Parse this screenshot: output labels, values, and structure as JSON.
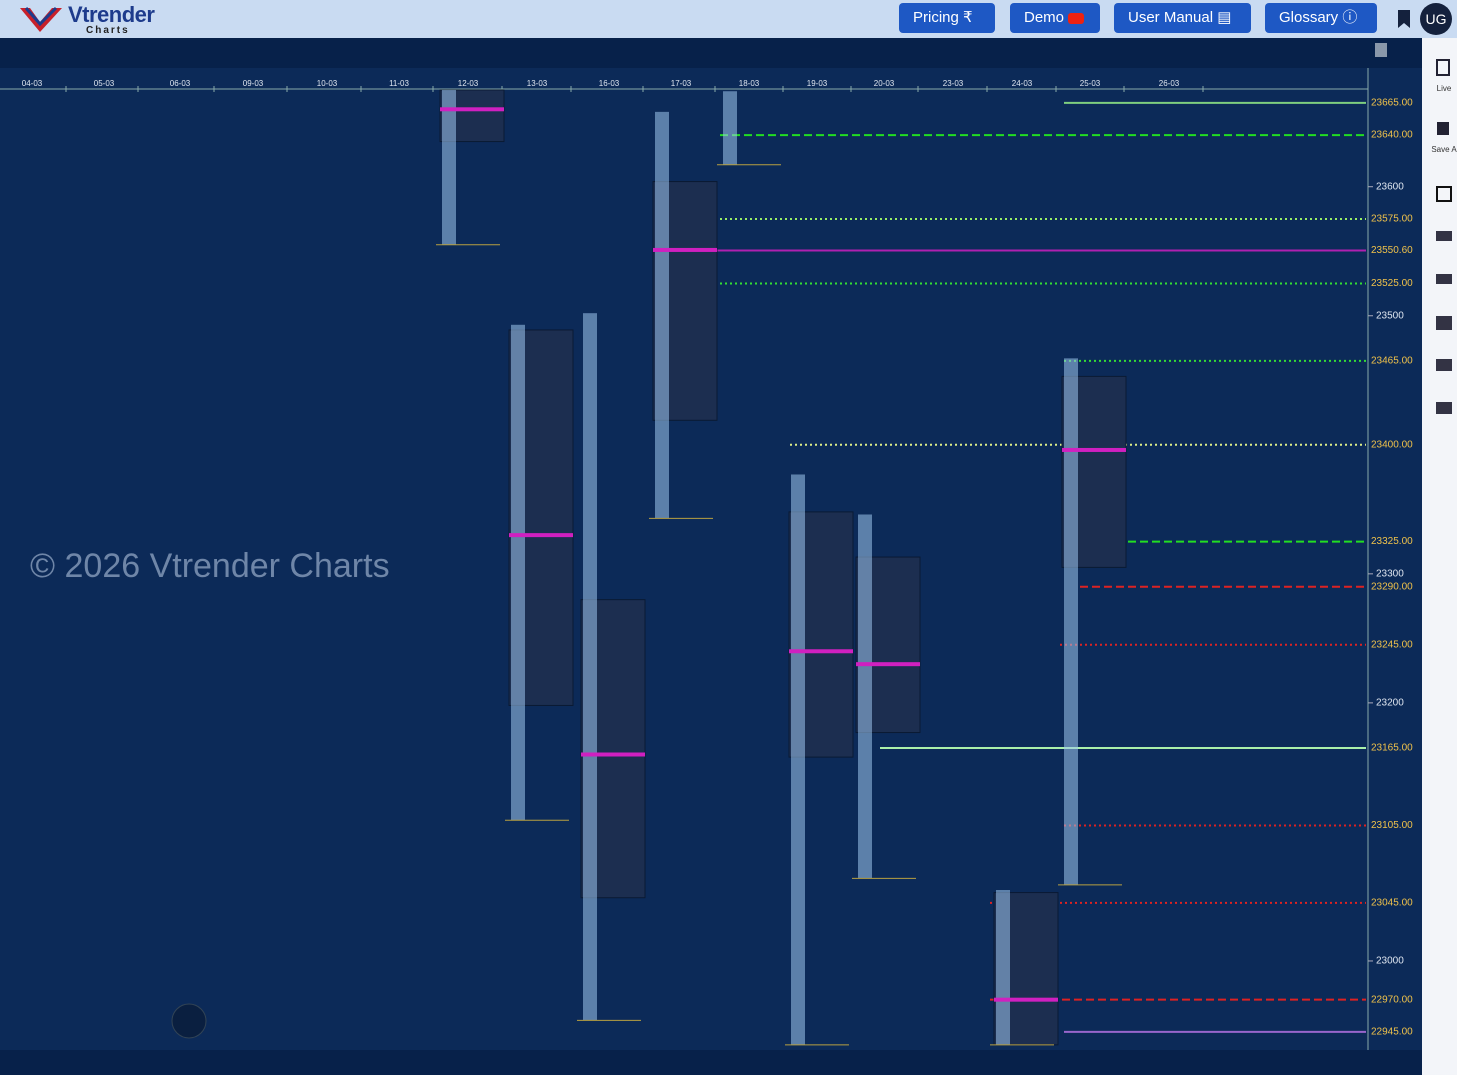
{
  "header": {
    "logo": "Vtrender",
    "logo_sub": "Charts",
    "buttons": [
      "Pricing",
      "Demo",
      "User Manual",
      "Glossary"
    ],
    "user": "UG"
  },
  "sidebar": {
    "live": "Live",
    "save": "Save A"
  },
  "watermark": "© 2026 Vtrender Charts",
  "dates": [
    "04-03",
    "05-03",
    "06-03",
    "09-03",
    "10-03",
    "11-03",
    "12-03",
    "13-03",
    "16-03",
    "17-03",
    "18-03",
    "19-03",
    "20-03",
    "23-03",
    "24-03",
    "25-03",
    "26-03"
  ],
  "price_axis": {
    "ylim": [
      22931,
      23692
    ],
    "yticks": [
      23600,
      23500,
      23300,
      23200,
      23000
    ]
  },
  "levels": [
    {
      "value": 23665,
      "label": "23665.00",
      "color": "#7fcf7f",
      "style": "solid"
    },
    {
      "value": 23640,
      "label": "23640.00",
      "color": "#22dd22",
      "style": "dashed"
    },
    {
      "value": 23575,
      "label": "23575.00",
      "color": "#99ee66",
      "style": "dotted"
    },
    {
      "value": 23550.6,
      "label": "23550.60",
      "color": "#b020b0",
      "style": "solid"
    },
    {
      "value": 23525,
      "label": "23525.00",
      "color": "#33dd33",
      "style": "dotted"
    },
    {
      "value": 23465,
      "label": "23465.00",
      "color": "#33dd33",
      "style": "dotted"
    },
    {
      "value": 23400,
      "label": "23400.00",
      "color": "#ddee88",
      "style": "dotted"
    },
    {
      "value": 23325,
      "label": "23325.00",
      "color": "#22dd22",
      "style": "dashed"
    },
    {
      "value": 23290,
      "label": "23290.00",
      "color": "#dd2222",
      "style": "dashed"
    },
    {
      "value": 23245,
      "label": "23245.00",
      "color": "#dd2222",
      "style": "dotted"
    },
    {
      "value": 23165,
      "label": "23165.00",
      "color": "#aaf0aa",
      "style": "solid"
    },
    {
      "value": 23105,
      "label": "23105.00",
      "color": "#dd2222",
      "style": "dotted"
    },
    {
      "value": 23045,
      "label": "23045.00",
      "color": "#dd2222",
      "style": "dotted"
    },
    {
      "value": 22970,
      "label": "22970.00",
      "color": "#dd2222",
      "style": "dashed"
    },
    {
      "value": 22945,
      "label": "22945.00",
      "color": "#9966cc",
      "style": "solid"
    }
  ],
  "profiles": [
    null,
    null,
    null,
    null,
    null,
    null,
    {
      "high": 23675,
      "low": 23555,
      "vah": 23675,
      "val": 23635,
      "poc": 23660
    },
    {
      "high": 23493,
      "low": 23109,
      "vah": 23489,
      "val": 23198,
      "poc": 23330
    },
    {
      "high": 23502,
      "low": 22954,
      "vah": 23280,
      "val": 23049,
      "poc": 23160
    },
    {
      "high": 23658,
      "low": 23343,
      "vah": 23604,
      "val": 23419,
      "poc": 23551
    },
    {
      "high": 23674,
      "low": 23617
    },
    {
      "high": 23377,
      "low": 22935,
      "vah": 23348,
      "val": 23158,
      "poc": 23240
    },
    {
      "high": 23346,
      "low": 23064,
      "vah": 23313,
      "val": 23177,
      "poc": 23230
    },
    null,
    {
      "high": 23055,
      "low": 22935,
      "vah": 23053,
      "val": 22935,
      "poc": 22970
    },
    {
      "high": 23467,
      "low": 23059,
      "vah": 23453,
      "val": 23305,
      "poc": 23396
    },
    null
  ]
}
